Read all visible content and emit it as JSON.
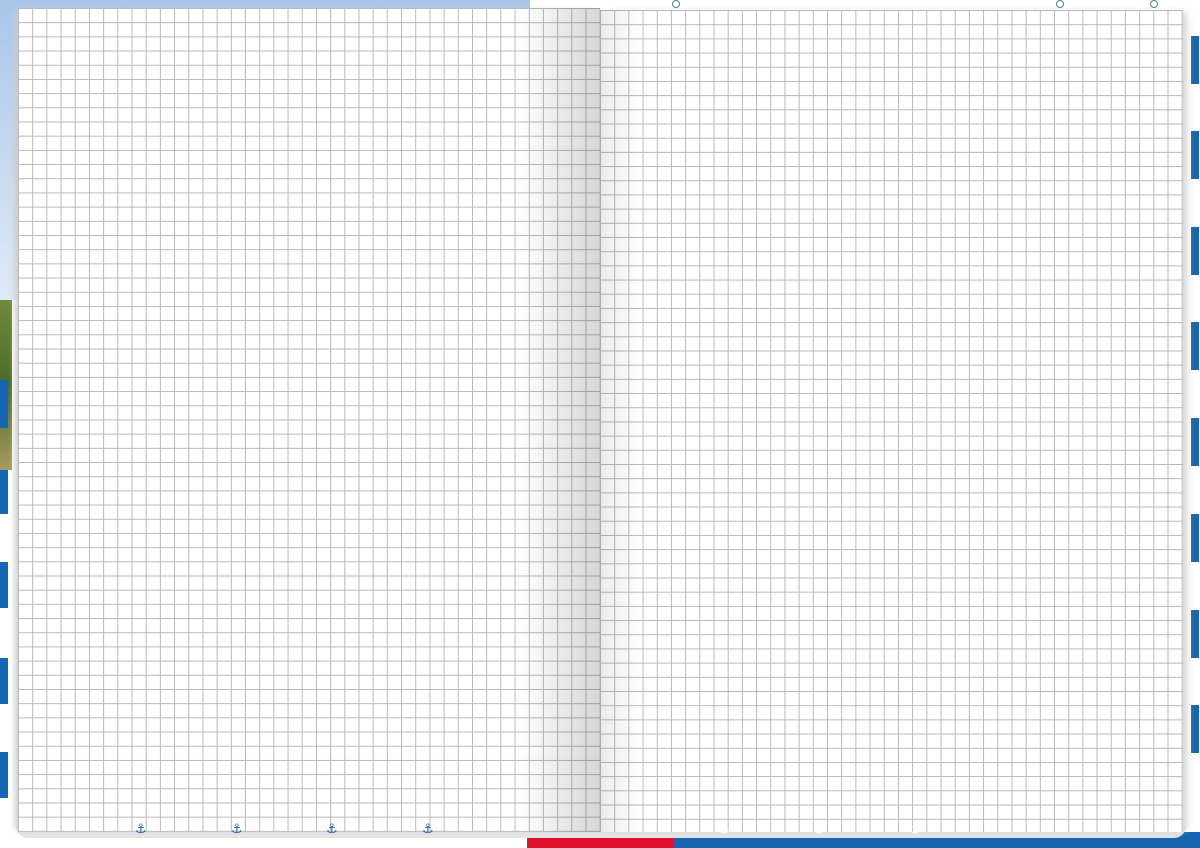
{
  "notebook": {
    "paper": "squared grid",
    "colors": {
      "cover_blue": "#1565b0",
      "cover_red": "#e0112b",
      "grid_line": "#b8b8b8",
      "sky": "#a9c6e8"
    },
    "bottom_icons": [
      "anchor-icon",
      "anchor-icon",
      "anchor-icon",
      "anchor-icon",
      "anchor-icon",
      "anchor-icon",
      "anchor-icon"
    ]
  }
}
